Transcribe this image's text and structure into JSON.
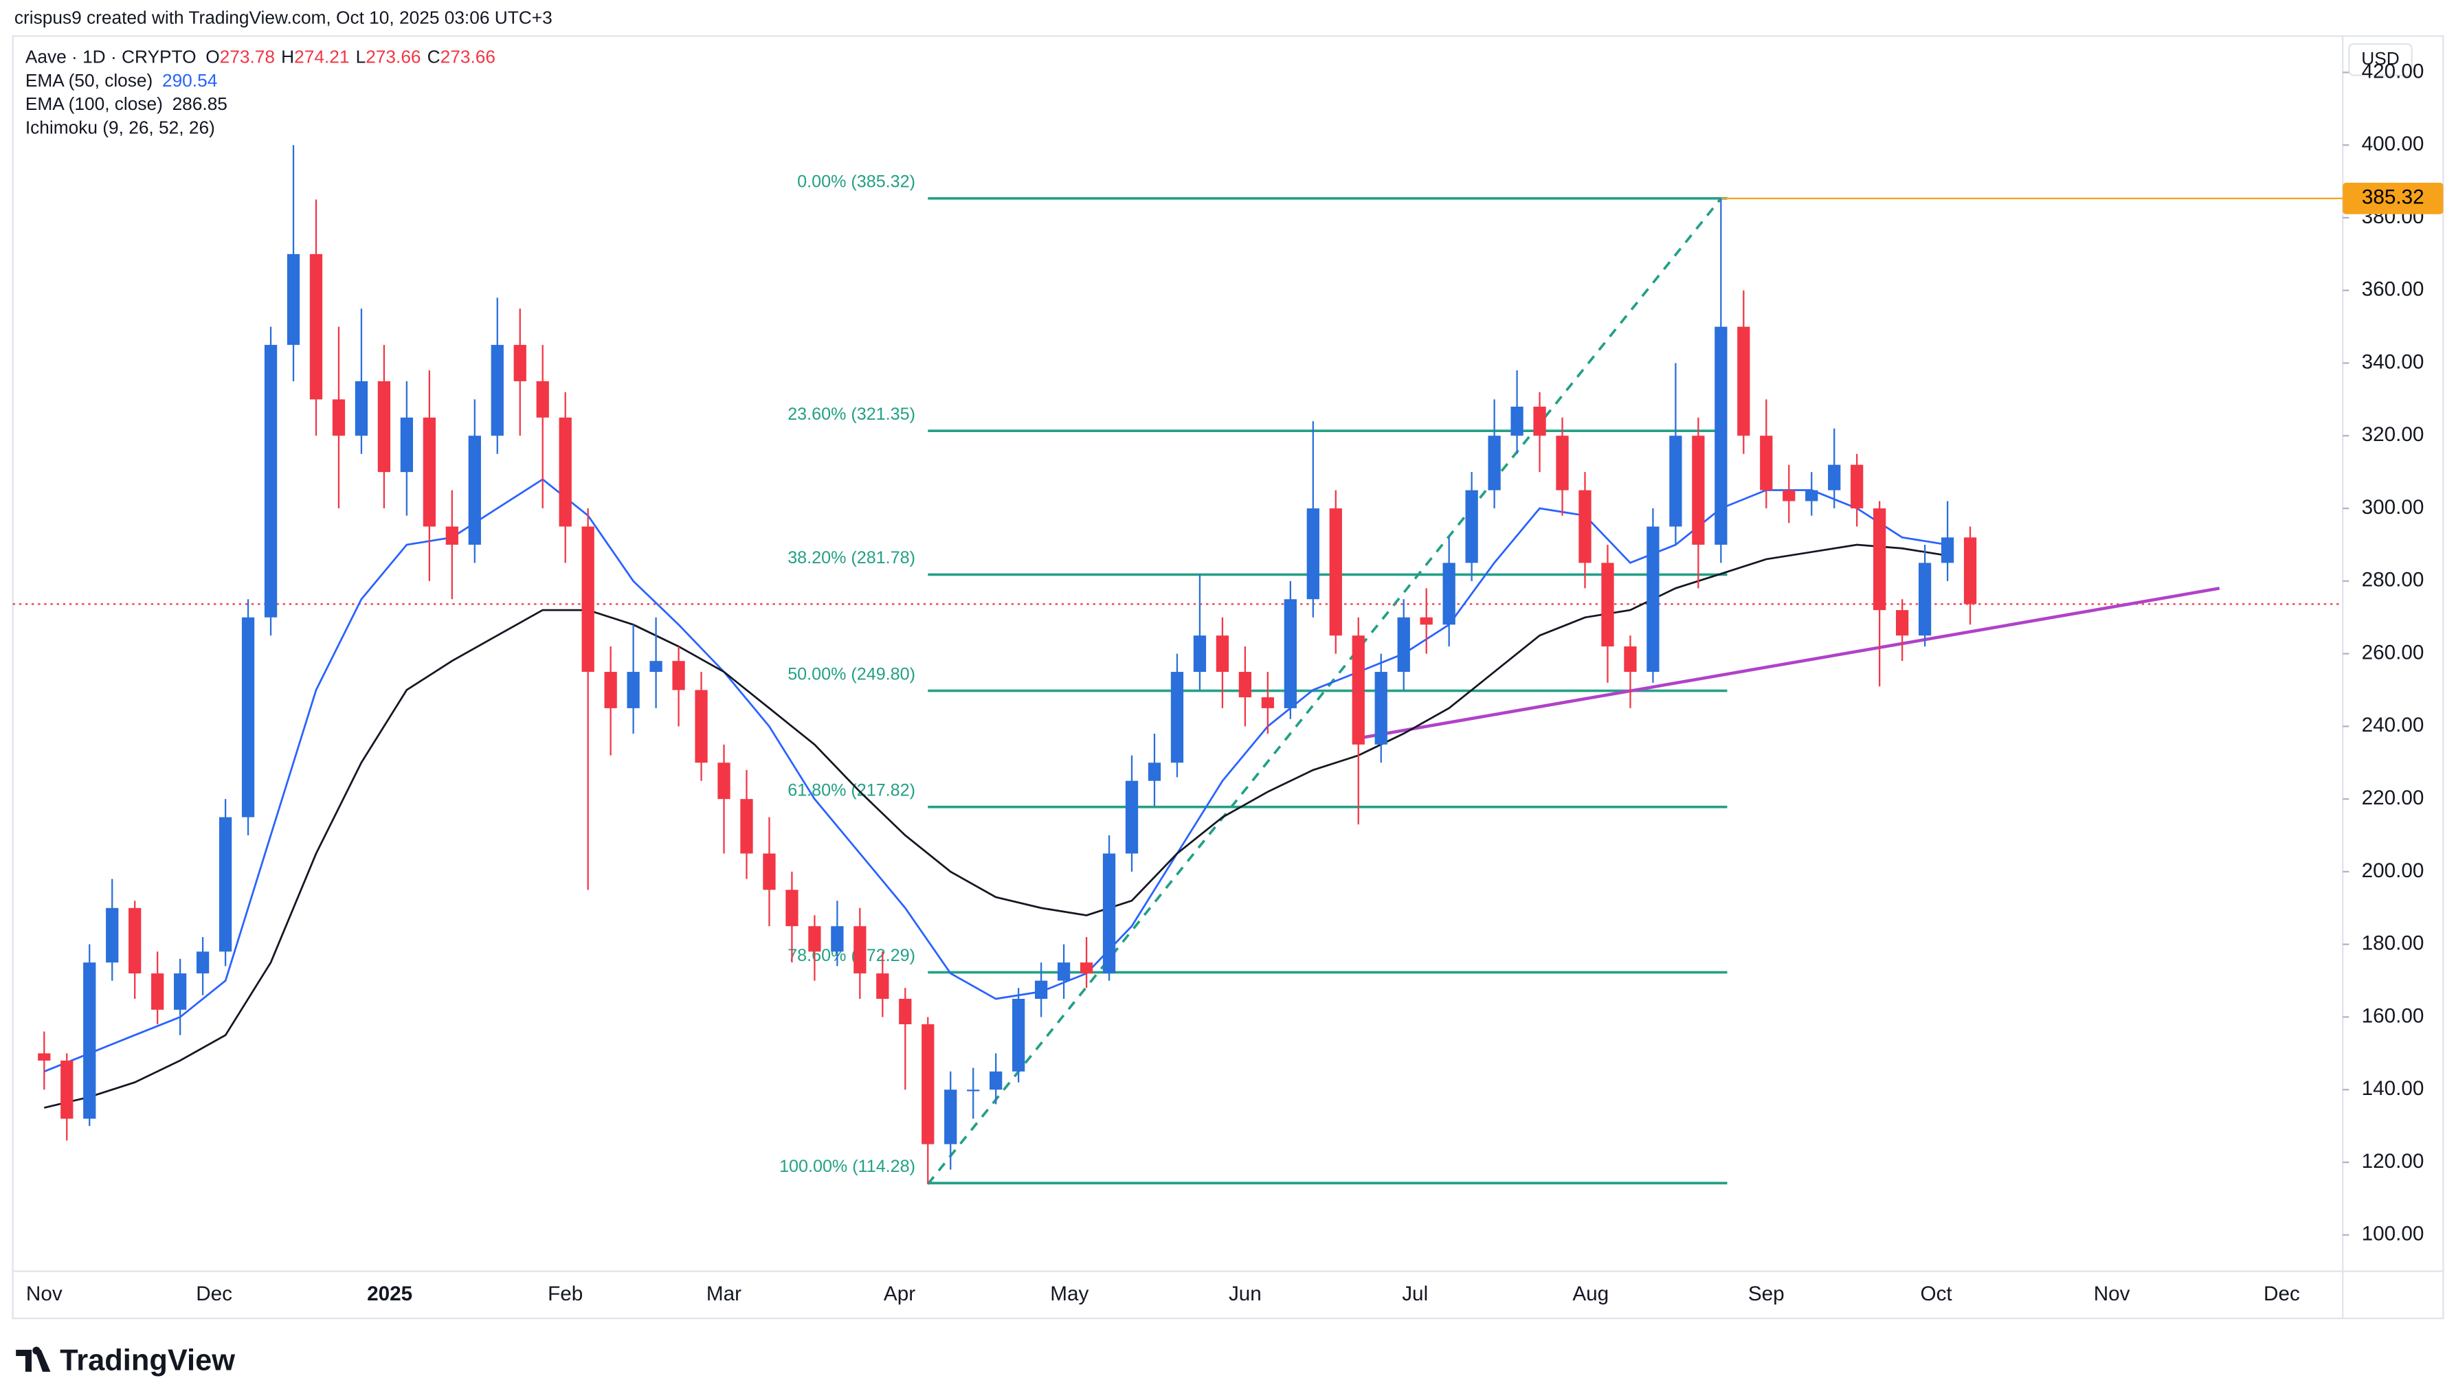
{
  "chart_data": {
    "type": "candlestick",
    "attribution": "crispus9 created with TradingView.com, Oct 10, 2025 03:06 UTC+3",
    "title": "Aave · 1D · CRYPTO",
    "ohlc": [
      {
        "label": "O",
        "value": 273.78
      },
      {
        "label": "H",
        "value": 274.21
      },
      {
        "label": "L",
        "value": 273.66
      },
      {
        "label": "C",
        "value": 273.66
      }
    ],
    "indicators": [
      {
        "name": "EMA (50, close)",
        "value": 290.54,
        "color": "#2962ff"
      },
      {
        "name": "EMA (100, close)",
        "value": 286.85,
        "color": "#131722"
      },
      {
        "name": "Ichimoku (9, 26, 52, 26)"
      }
    ],
    "currency": "USD",
    "logo": "TradingView",
    "up_color": "#2a6fdb",
    "down_color": "#f23645",
    "ylim": [
      90,
      430
    ],
    "yticks": [
      {
        "value": 100,
        "label": "100.00"
      },
      {
        "value": 120,
        "label": "120.00"
      },
      {
        "value": 140,
        "label": "140.00"
      },
      {
        "value": 160,
        "label": "160.00"
      },
      {
        "value": 180,
        "label": "180.00"
      },
      {
        "value": 200,
        "label": "200.00"
      },
      {
        "value": 220,
        "label": "220.00"
      },
      {
        "value": 240,
        "label": "240.00"
      },
      {
        "value": 260,
        "label": "260.00"
      },
      {
        "value": 280,
        "label": "280.00"
      },
      {
        "value": 300,
        "label": "300.00"
      },
      {
        "value": 320,
        "label": "320.00"
      },
      {
        "value": 340,
        "label": "340.00"
      },
      {
        "value": 360,
        "label": "360.00"
      },
      {
        "value": 380,
        "label": "380.00"
      },
      {
        "value": 400,
        "label": "400.00"
      },
      {
        "value": 420,
        "label": "420.00"
      }
    ],
    "xticks": [
      "Nov",
      "Dec",
      "2025",
      "Feb",
      "Mar",
      "Apr",
      "May",
      "Jun",
      "Jul",
      "Aug",
      "Sep",
      "Oct",
      "Nov",
      "Dec"
    ],
    "candles": [
      [
        150,
        156,
        140,
        148
      ],
      [
        148,
        150,
        126,
        132
      ],
      [
        132,
        180,
        130,
        175
      ],
      [
        175,
        198,
        170,
        190
      ],
      [
        190,
        192,
        165,
        172
      ],
      [
        172,
        178,
        158,
        162
      ],
      [
        162,
        176,
        155,
        172
      ],
      [
        172,
        182,
        166,
        178
      ],
      [
        178,
        220,
        174,
        215
      ],
      [
        215,
        275,
        210,
        270
      ],
      [
        270,
        350,
        265,
        345
      ],
      [
        345,
        400,
        335,
        370
      ],
      [
        370,
        385,
        320,
        330
      ],
      [
        330,
        350,
        300,
        320
      ],
      [
        320,
        355,
        315,
        335
      ],
      [
        335,
        345,
        300,
        310
      ],
      [
        310,
        335,
        298,
        325
      ],
      [
        325,
        338,
        280,
        295
      ],
      [
        295,
        305,
        275,
        290
      ],
      [
        290,
        330,
        285,
        320
      ],
      [
        320,
        358,
        315,
        345
      ],
      [
        345,
        355,
        320,
        335
      ],
      [
        335,
        345,
        300,
        325
      ],
      [
        325,
        332,
        285,
        295
      ],
      [
        295,
        300,
        195,
        255
      ],
      [
        255,
        262,
        232,
        245
      ],
      [
        245,
        268,
        238,
        255
      ],
      [
        255,
        270,
        245,
        258
      ],
      [
        258,
        262,
        240,
        250
      ],
      [
        250,
        255,
        225,
        230
      ],
      [
        230,
        235,
        205,
        220
      ],
      [
        220,
        228,
        198,
        205
      ],
      [
        205,
        215,
        185,
        195
      ],
      [
        195,
        200,
        175,
        185
      ],
      [
        185,
        188,
        170,
        178
      ],
      [
        178,
        192,
        174,
        185
      ],
      [
        185,
        190,
        165,
        172
      ],
      [
        172,
        178,
        160,
        165
      ],
      [
        165,
        168,
        140,
        158
      ],
      [
        158,
        160,
        114,
        125
      ],
      [
        125,
        145,
        118,
        140
      ],
      [
        140,
        146,
        132,
        140
      ],
      [
        140,
        150,
        136,
        145
      ],
      [
        145,
        168,
        142,
        165
      ],
      [
        165,
        175,
        160,
        170
      ],
      [
        170,
        180,
        165,
        175
      ],
      [
        175,
        182,
        168,
        172
      ],
      [
        172,
        210,
        170,
        205
      ],
      [
        205,
        232,
        200,
        225
      ],
      [
        225,
        238,
        218,
        230
      ],
      [
        230,
        260,
        226,
        255
      ],
      [
        255,
        282,
        250,
        265
      ],
      [
        265,
        270,
        245,
        255
      ],
      [
        255,
        262,
        240,
        248
      ],
      [
        248,
        255,
        238,
        245
      ],
      [
        245,
        280,
        242,
        275
      ],
      [
        275,
        324,
        270,
        300
      ],
      [
        300,
        305,
        260,
        265
      ],
      [
        265,
        270,
        213,
        235
      ],
      [
        235,
        260,
        230,
        255
      ],
      [
        255,
        275,
        250,
        270
      ],
      [
        270,
        278,
        260,
        268
      ],
      [
        268,
        292,
        262,
        285
      ],
      [
        285,
        310,
        280,
        305
      ],
      [
        305,
        330,
        300,
        320
      ],
      [
        320,
        338,
        315,
        328
      ],
      [
        328,
        332,
        310,
        320
      ],
      [
        320,
        325,
        298,
        305
      ],
      [
        305,
        310,
        278,
        285
      ],
      [
        285,
        290,
        252,
        262
      ],
      [
        262,
        265,
        245,
        255
      ],
      [
        255,
        300,
        252,
        295
      ],
      [
        295,
        340,
        290,
        320
      ],
      [
        320,
        325,
        278,
        290
      ],
      [
        290,
        385.32,
        285,
        350
      ],
      [
        350,
        360,
        315,
        320
      ],
      [
        320,
        330,
        300,
        305
      ],
      [
        305,
        312,
        296,
        302
      ],
      [
        302,
        310,
        298,
        305
      ],
      [
        305,
        322,
        300,
        312
      ],
      [
        312,
        315,
        295,
        300
      ],
      [
        300,
        302,
        251,
        272
      ],
      [
        272,
        275,
        258,
        265
      ],
      [
        265,
        290,
        262,
        285
      ],
      [
        285,
        302,
        280,
        292
      ],
      [
        292,
        295,
        268,
        273.66
      ]
    ],
    "series": [
      {
        "name": "EMA (50, close)",
        "color": "#2962ff",
        "values": [
          145,
          150,
          155,
          160,
          170,
          210,
          250,
          275,
          290,
          292,
          300,
          308,
          298,
          280,
          268,
          255,
          240,
          220,
          205,
          190,
          172,
          165,
          167,
          172,
          185,
          205,
          225,
          240,
          250,
          255,
          260,
          268,
          285,
          300,
          298,
          285,
          290,
          300,
          305,
          305,
          300,
          292,
          290
        ]
      },
      {
        "name": "EMA (100, close)",
        "color": "#131722",
        "values": [
          135,
          138,
          142,
          148,
          155,
          175,
          205,
          230,
          250,
          258,
          265,
          272,
          272,
          268,
          262,
          255,
          245,
          235,
          222,
          210,
          200,
          193,
          190,
          188,
          192,
          205,
          215,
          222,
          228,
          232,
          238,
          245,
          255,
          265,
          270,
          272,
          278,
          282,
          286,
          288,
          290,
          289,
          287
        ]
      }
    ],
    "fib": [
      {
        "label": "0.00% (385.32)",
        "value": 385.32
      },
      {
        "label": "23.60% (321.35)",
        "value": 321.35
      },
      {
        "label": "38.20% (281.78)",
        "value": 281.78
      },
      {
        "label": "50.00% (249.80)",
        "value": 249.8
      },
      {
        "label": "61.80% (217.82)",
        "value": 217.82
      },
      {
        "label": "78.60% (172.29)",
        "value": 172.29
      },
      {
        "label": "100.00% (114.28)",
        "value": 114.28
      }
    ],
    "fib_color": "#22a085",
    "high_marker": 385.32,
    "trendline": {
      "color": "#b042c8",
      "values": [
        237,
        278
      ]
    }
  }
}
